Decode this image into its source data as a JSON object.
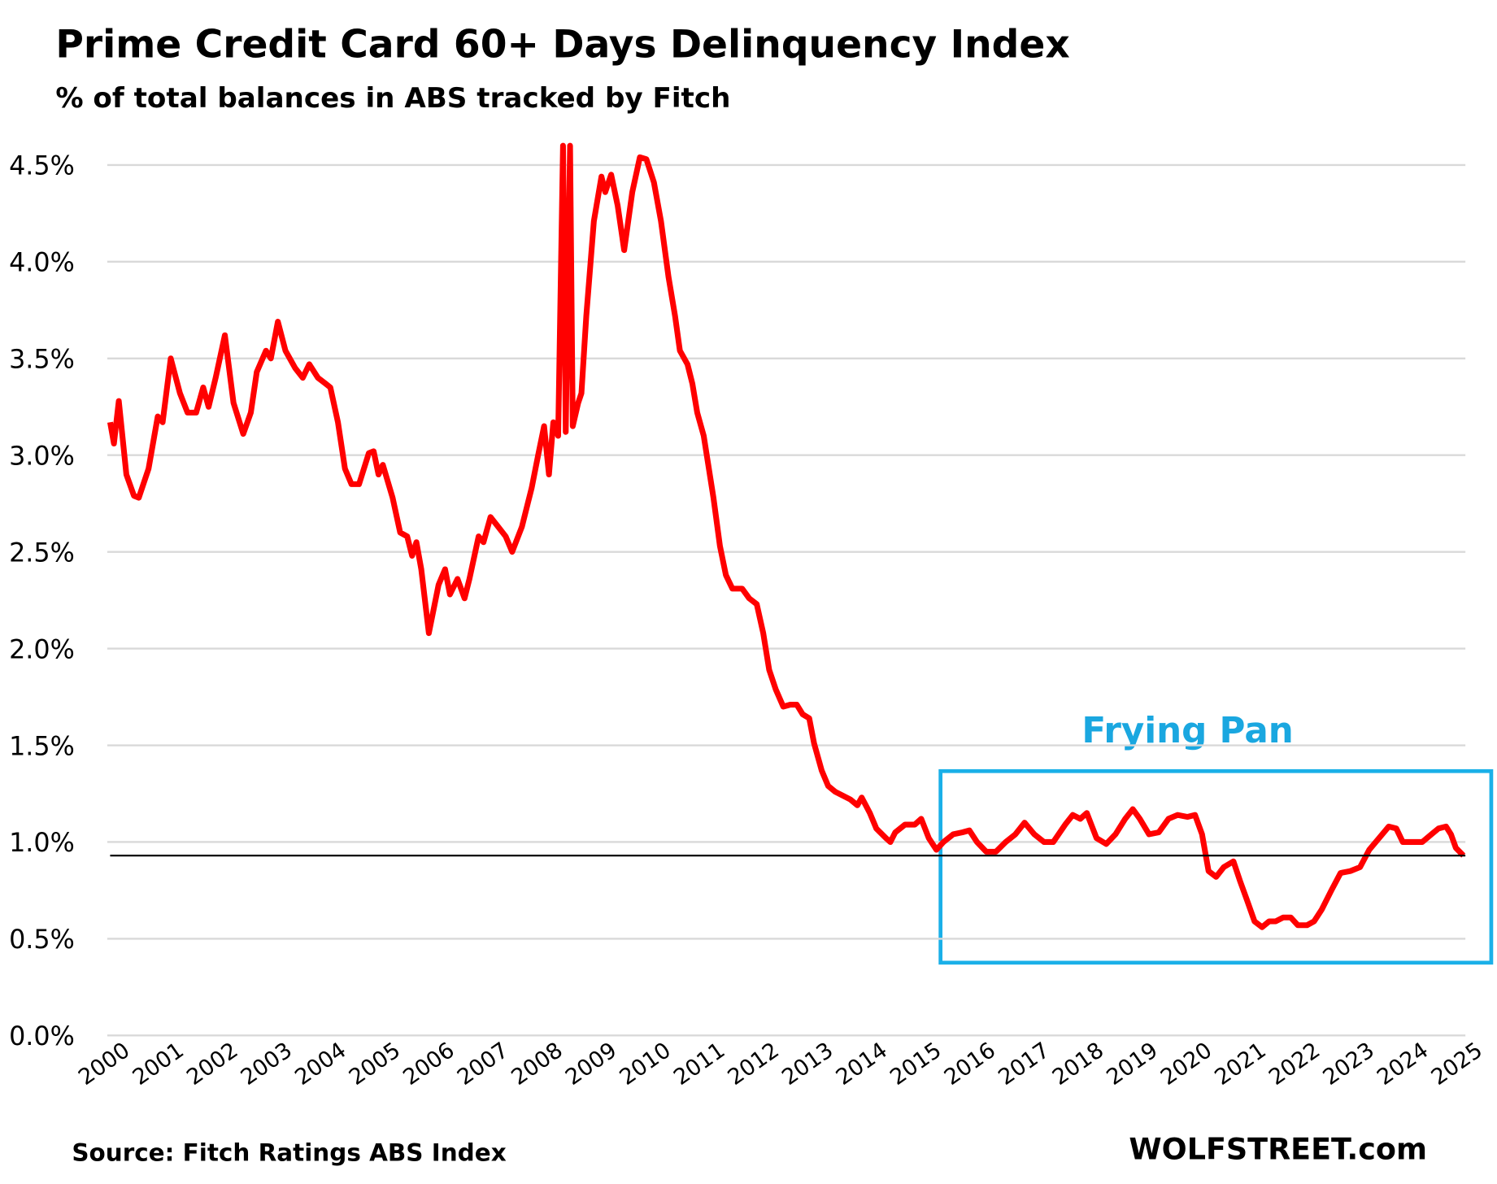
{
  "chart_data": {
    "type": "line",
    "title": "Prime Credit Card 60+ Days Delinquency Index",
    "subtitle": "% of total balances in ABS tracked by Fitch",
    "source": "Source: Fitch Ratings ABS Index",
    "watermark": "WOLFSTREET.com",
    "annotation": "Frying Pan",
    "color": "#ff0000",
    "reference_line": 0.93,
    "grid": true,
    "xlim": [
      2000,
      2025.1
    ],
    "xticks": [
      2000,
      2001,
      2002,
      2003,
      2004,
      2005,
      2006,
      2007,
      2008,
      2009,
      2010,
      2011,
      2012,
      2013,
      2014,
      2015,
      2016,
      2017,
      2018,
      2019,
      2020,
      2021,
      2022,
      2023,
      2024,
      2025
    ],
    "ylim": [
      0,
      4.6
    ],
    "yticks": [
      {
        "value": 0,
        "label": "0.0%"
      },
      {
        "value": 0.5,
        "label": "0.5%"
      },
      {
        "value": 1,
        "label": "1.0%"
      },
      {
        "value": 1.5,
        "label": "1.5%"
      },
      {
        "value": 2,
        "label": "2.0%"
      },
      {
        "value": 2.5,
        "label": "2.5%"
      },
      {
        "value": 3,
        "label": "3.0%"
      },
      {
        "value": 3.5,
        "label": "3.5%"
      },
      {
        "value": 4,
        "label": "4.0%"
      },
      {
        "value": 4.5,
        "label": "4.5%"
      }
    ],
    "x": [
      2000.0,
      2000.07,
      2000.16,
      2000.3,
      2000.44,
      2000.53,
      2000.71,
      2000.88,
      2000.97,
      2001.12,
      2001.29,
      2001.43,
      2001.59,
      2001.72,
      2001.82,
      2001.95,
      2002.12,
      2002.28,
      2002.46,
      2002.6,
      2002.71,
      2002.88,
      2002.97,
      2003.1,
      2003.24,
      2003.42,
      2003.56,
      2003.68,
      2003.84,
      2003.98,
      2004.07,
      2004.21,
      2004.34,
      2004.46,
      2004.6,
      2004.78,
      2004.87,
      2004.96,
      2005.04,
      2005.22,
      2005.36,
      2005.49,
      2005.58,
      2005.66,
      2005.75,
      2005.89,
      2006.07,
      2006.19,
      2006.28,
      2006.42,
      2006.55,
      2006.64,
      2006.81,
      2006.9,
      2007.03,
      2007.17,
      2007.31,
      2007.43,
      2007.61,
      2007.79,
      2007.91,
      2008.02,
      2008.11,
      2008.19,
      2008.28,
      2008.37,
      2008.42,
      2008.5,
      2008.55,
      2008.65,
      2008.71,
      2008.8,
      2008.94,
      2009.08,
      2009.15,
      2009.26,
      2009.38,
      2009.5,
      2009.65,
      2009.79,
      2009.91,
      2010.05,
      2010.18,
      2010.32,
      2010.44,
      2010.53,
      2010.67,
      2010.76,
      2010.85,
      2010.97,
      2011.15,
      2011.27,
      2011.38,
      2011.5,
      2011.68,
      2011.81,
      2011.95,
      2012.07,
      2012.18,
      2012.3,
      2012.44,
      2012.57,
      2012.69,
      2012.8,
      2012.92,
      2013.01,
      2013.15,
      2013.27,
      2013.4,
      2013.54,
      2013.68,
      2013.81,
      2013.89,
      2014.04,
      2014.16,
      2014.34,
      2014.42,
      2014.51,
      2014.69,
      2014.87,
      2014.99,
      2015.13,
      2015.27,
      2015.4,
      2015.58,
      2015.75,
      2015.88,
      2016.02,
      2016.19,
      2016.37,
      2016.55,
      2016.73,
      2016.9,
      2017.08,
      2017.26,
      2017.43,
      2017.65,
      2017.79,
      2017.93,
      2018.05,
      2018.23,
      2018.41,
      2018.58,
      2018.76,
      2018.9,
      2019.03,
      2019.2,
      2019.38,
      2019.56,
      2019.73,
      2019.91,
      2020.05,
      2020.18,
      2020.3,
      2020.44,
      2020.58,
      2020.76,
      2020.88,
      2021.01,
      2021.15,
      2021.29,
      2021.42,
      2021.54,
      2021.68,
      2021.82,
      2021.95,
      2022.12,
      2022.25,
      2022.39,
      2022.57,
      2022.74,
      2022.92,
      2023.1,
      2023.27,
      2023.45,
      2023.63,
      2023.77,
      2023.89,
      2024.07,
      2024.25,
      2024.42,
      2024.55,
      2024.69,
      2024.78,
      2024.87,
      2025.01
    ],
    "values": [
      3.17,
      3.06,
      3.28,
      2.9,
      2.79,
      2.78,
      2.93,
      3.2,
      3.17,
      3.5,
      3.32,
      3.22,
      3.22,
      3.35,
      3.25,
      3.4,
      3.62,
      3.27,
      3.11,
      3.22,
      3.43,
      3.54,
      3.5,
      3.69,
      3.54,
      3.45,
      3.4,
      3.47,
      3.4,
      3.37,
      3.35,
      3.17,
      2.93,
      2.85,
      2.85,
      3.01,
      3.02,
      2.9,
      2.95,
      2.78,
      2.6,
      2.58,
      2.48,
      2.55,
      2.41,
      2.08,
      2.33,
      2.41,
      2.28,
      2.36,
      2.26,
      2.36,
      2.58,
      2.55,
      2.68,
      2.63,
      2.58,
      2.5,
      2.63,
      2.83,
      3.0,
      3.15,
      2.9,
      3.17,
      3.1,
      4.6,
      3.12,
      4.6,
      3.15,
      3.27,
      3.32,
      3.72,
      4.21,
      4.44,
      4.36,
      4.45,
      4.29,
      4.06,
      4.36,
      4.54,
      4.53,
      4.41,
      4.21,
      3.92,
      3.72,
      3.54,
      3.47,
      3.37,
      3.22,
      3.1,
      2.78,
      2.53,
      2.38,
      2.31,
      2.31,
      2.26,
      2.23,
      2.08,
      1.89,
      1.79,
      1.7,
      1.71,
      1.71,
      1.66,
      1.64,
      1.51,
      1.37,
      1.29,
      1.26,
      1.24,
      1.22,
      1.19,
      1.23,
      1.15,
      1.07,
      1.02,
      1.0,
      1.05,
      1.09,
      1.09,
      1.12,
      1.02,
      0.96,
      1.0,
      1.04,
      1.05,
      1.06,
      1.0,
      0.95,
      0.95,
      1.0,
      1.04,
      1.1,
      1.04,
      1.0,
      1.0,
      1.09,
      1.14,
      1.12,
      1.15,
      1.02,
      0.99,
      1.04,
      1.12,
      1.17,
      1.12,
      1.04,
      1.05,
      1.12,
      1.14,
      1.13,
      1.14,
      1.04,
      0.85,
      0.82,
      0.87,
      0.9,
      0.8,
      0.7,
      0.59,
      0.56,
      0.59,
      0.59,
      0.61,
      0.61,
      0.57,
      0.57,
      0.59,
      0.65,
      0.75,
      0.84,
      0.85,
      0.87,
      0.96,
      1.02,
      1.08,
      1.07,
      1.0,
      1.0,
      1.0,
      1.04,
      1.07,
      1.08,
      1.04,
      0.97,
      0.93
    ]
  }
}
